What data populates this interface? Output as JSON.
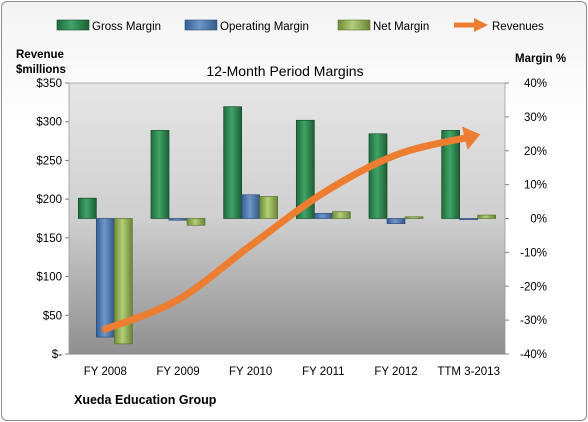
{
  "chart_data": {
    "type": "bar",
    "title": "12-Month Period Margins",
    "footer": "Xueda Education Group",
    "categories": [
      "FY 2008",
      "FY 2009",
      "FY 2010",
      "FY 2011",
      "FY 2012",
      "TTM 3-2013"
    ],
    "left_axis": {
      "label_line1": "Revenue",
      "label_line2": "$millions",
      "ticks": [
        "$-",
        "$50",
        "$100",
        "$150",
        "$200",
        "$250",
        "$300",
        "$350"
      ],
      "ylim": [
        0,
        350
      ]
    },
    "right_axis": {
      "label": "Margin %",
      "ticks": [
        "-40%",
        "-30%",
        "-20%",
        "-10%",
        "0%",
        "10%",
        "20%",
        "30%",
        "40%"
      ],
      "ylim": [
        -40,
        40
      ]
    },
    "series": [
      {
        "name": "Gross Margin",
        "axis": "right",
        "color": "#2e8b57",
        "values": [
          6,
          26,
          33,
          29,
          25,
          26
        ]
      },
      {
        "name": "Operating Margin",
        "axis": "right",
        "color": "#4f81bd",
        "values": [
          -35,
          -0.5,
          7,
          1.5,
          -1.5,
          -0.3
        ]
      },
      {
        "name": "Net Margin",
        "axis": "right",
        "color": "#9bbb59",
        "values": [
          -37,
          -2,
          6.5,
          2,
          0.5,
          1
        ]
      },
      {
        "name": "Revenues",
        "axis": "left",
        "type": "line",
        "color": "#ed7d31",
        "values": [
          32,
          70,
          140,
          208,
          257,
          280
        ]
      }
    ]
  }
}
